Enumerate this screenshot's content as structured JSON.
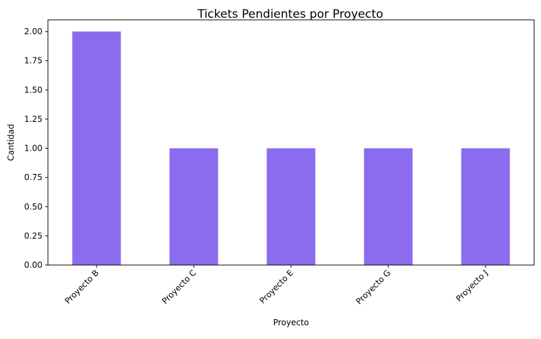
{
  "chart_data": {
    "type": "bar",
    "title": "Tickets Pendientes por Proyecto",
    "xlabel": "Proyecto",
    "ylabel": "Cantidad",
    "categories": [
      "Proyecto B",
      "Proyecto C",
      "Proyecto E",
      "Proyecto G",
      "Proyecto J"
    ],
    "values": [
      2,
      1,
      1,
      1,
      1
    ],
    "ylim": [
      0,
      2.1
    ],
    "yticks": [
      "0.00",
      "0.25",
      "0.50",
      "0.75",
      "1.00",
      "1.25",
      "1.50",
      "1.75",
      "2.00"
    ],
    "bar_color": "#8b6cef",
    "grid": false,
    "legend": false
  }
}
